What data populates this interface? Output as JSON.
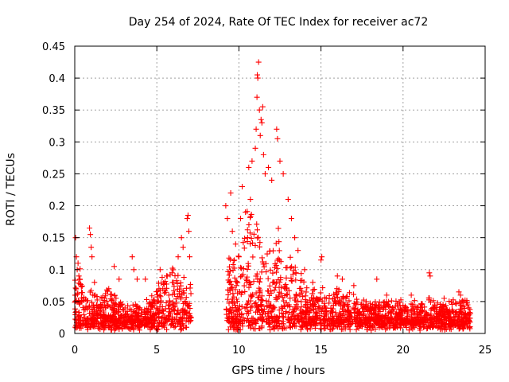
{
  "chart_data": {
    "type": "scatter",
    "title": "Day 254 of 2024, Rate Of TEC Index for receiver ac72",
    "xlabel": "GPS time / hours",
    "ylabel": "ROTI / TECUs",
    "xlim": [
      0,
      25
    ],
    "ylim": [
      0,
      0.45
    ],
    "xticks": [
      "0",
      "5",
      "10",
      "15",
      "20",
      "25"
    ],
    "yticks": [
      "0",
      "0.05",
      "0.1",
      "0.15",
      "0.2",
      "0.25",
      "0.3",
      "0.35",
      "0.4",
      "0.45"
    ],
    "grid": true,
    "marker": "+",
    "color": "#ff0000",
    "data_gap_hours": [
      7.1,
      9.2
    ],
    "series": [
      {
        "name": "ROTI",
        "points": [
          [
            0.05,
            0.15
          ],
          [
            0.1,
            0.12
          ],
          [
            0.15,
            0.1
          ],
          [
            0.2,
            0.11
          ],
          [
            0.25,
            0.09
          ],
          [
            0.3,
            0.085
          ],
          [
            0.9,
            0.165
          ],
          [
            0.95,
            0.155
          ],
          [
            1.0,
            0.135
          ],
          [
            1.05,
            0.12
          ],
          [
            1.2,
            0.08
          ],
          [
            2.4,
            0.105
          ],
          [
            2.7,
            0.085
          ],
          [
            3.5,
            0.12
          ],
          [
            3.6,
            0.1
          ],
          [
            3.8,
            0.085
          ],
          [
            4.3,
            0.085
          ],
          [
            5.2,
            0.1
          ],
          [
            5.6,
            0.09
          ],
          [
            6.0,
            0.08
          ],
          [
            6.3,
            0.12
          ],
          [
            6.5,
            0.15
          ],
          [
            6.6,
            0.135
          ],
          [
            6.85,
            0.18
          ],
          [
            6.9,
            0.185
          ],
          [
            6.95,
            0.16
          ],
          [
            7.0,
            0.12
          ],
          [
            9.2,
            0.2
          ],
          [
            9.3,
            0.18
          ],
          [
            9.5,
            0.22
          ],
          [
            9.6,
            0.16
          ],
          [
            9.8,
            0.14
          ],
          [
            10.0,
            0.12
          ],
          [
            10.1,
            0.18
          ],
          [
            10.2,
            0.23
          ],
          [
            10.4,
            0.19
          ],
          [
            10.6,
            0.26
          ],
          [
            10.7,
            0.21
          ],
          [
            10.8,
            0.27
          ],
          [
            11.0,
            0.29
          ],
          [
            11.05,
            0.32
          ],
          [
            11.1,
            0.37
          ],
          [
            11.12,
            0.405
          ],
          [
            11.15,
            0.4
          ],
          [
            11.2,
            0.425
          ],
          [
            11.25,
            0.35
          ],
          [
            11.3,
            0.31
          ],
          [
            11.35,
            0.335
          ],
          [
            11.4,
            0.33
          ],
          [
            11.45,
            0.355
          ],
          [
            11.5,
            0.28
          ],
          [
            11.6,
            0.25
          ],
          [
            11.8,
            0.26
          ],
          [
            12.0,
            0.24
          ],
          [
            12.3,
            0.32
          ],
          [
            12.35,
            0.305
          ],
          [
            12.5,
            0.27
          ],
          [
            12.7,
            0.25
          ],
          [
            13.0,
            0.21
          ],
          [
            13.2,
            0.18
          ],
          [
            13.4,
            0.15
          ],
          [
            13.6,
            0.13
          ],
          [
            14.0,
            0.1
          ],
          [
            14.5,
            0.08
          ],
          [
            15.0,
            0.115
          ],
          [
            15.05,
            0.12
          ],
          [
            16.0,
            0.09
          ],
          [
            16.3,
            0.085
          ],
          [
            17.0,
            0.075
          ],
          [
            18.4,
            0.085
          ],
          [
            19.0,
            0.06
          ],
          [
            20.5,
            0.06
          ],
          [
            21.6,
            0.095
          ],
          [
            21.65,
            0.09
          ],
          [
            22.5,
            0.055
          ],
          [
            23.4,
            0.065
          ],
          [
            23.5,
            0.06
          ],
          [
            24.0,
            0.04
          ]
        ]
      }
    ]
  }
}
